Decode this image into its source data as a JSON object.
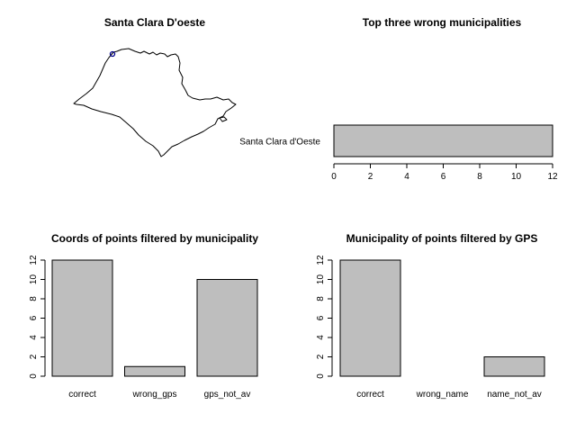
{
  "panels": {
    "map": {
      "title": "Santa Clara D'oeste",
      "marker_color": "#00008b"
    },
    "top_wrong": {
      "title": "Top three wrong municipalities"
    },
    "coords_filtered": {
      "title": "Coords of points filtered by municipality"
    },
    "municipality_filtered": {
      "title": "Municipality of points filtered by GPS"
    }
  },
  "chart_data": [
    {
      "type": "bar",
      "orientation": "horizontal",
      "title": "Top three wrong municipalities",
      "categories": [
        "Santa Clara d'Oeste"
      ],
      "values": [
        12
      ],
      "xlim": [
        0,
        12
      ],
      "ticks": [
        0,
        2,
        4,
        6,
        8,
        10,
        12
      ],
      "bar_color": "#bebebe"
    },
    {
      "type": "bar",
      "title": "Coords of points filtered by municipality",
      "categories": [
        "correct",
        "wrong_gps",
        "gps_not_av"
      ],
      "values": [
        12,
        1,
        10
      ],
      "ylim": [
        0,
        12
      ],
      "ticks": [
        0,
        2,
        4,
        6,
        8,
        10,
        12
      ],
      "bar_color": "#bebebe"
    },
    {
      "type": "bar",
      "title": "Municipality of points filtered by GPS",
      "categories": [
        "correct",
        "wrong_name",
        "name_not_av"
      ],
      "values": [
        12,
        0,
        2
      ],
      "ylim": [
        0,
        12
      ],
      "ticks": [
        0,
        2,
        4,
        6,
        8,
        10,
        12
      ],
      "bar_color": "#bebebe"
    }
  ]
}
